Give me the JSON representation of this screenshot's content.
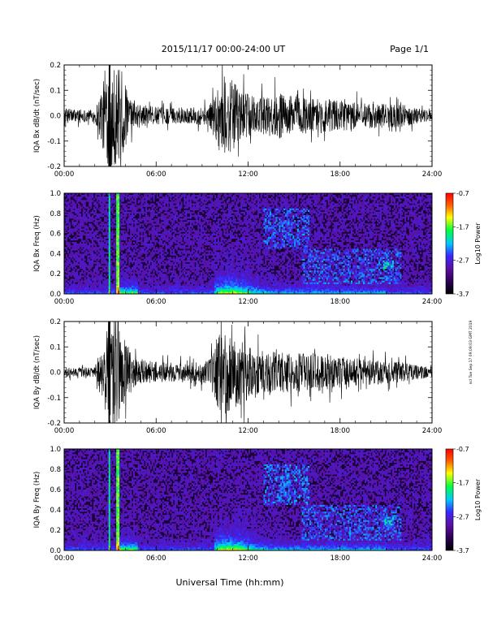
{
  "header": {
    "title": "2015/11/17   00:00-24:00 UT",
    "page": "Page 1/1"
  },
  "footer": {
    "xlabel": "Universal Time (hh:mm)",
    "stamp": "ncl Tue Sep 17 09:09:03 GMT 2019"
  },
  "colors": {
    "trace": "#000000",
    "colormap": [
      "#000000",
      "#2a0050",
      "#5a10a0",
      "#3a28ff",
      "#00c8ff",
      "#00ff40",
      "#ffff00",
      "#ff6000",
      "#ff0000"
    ]
  },
  "chart_data": [
    {
      "type": "line",
      "id": "bx-waveform",
      "ylabel": "IQA Bx dB/dt (nT/sec)",
      "xlim": [
        0,
        24
      ],
      "ylim": [
        -0.2,
        0.2
      ],
      "xticks": [
        "00:00",
        "06:00",
        "12:00",
        "18:00",
        "24:00"
      ],
      "yticks": [
        "-0.2",
        "-0.1",
        "0.0",
        "0.1",
        "0.2"
      ],
      "series": [
        {
          "x_hours": [
            0,
            1,
            2,
            2.9,
            3.1,
            3.5,
            4.5,
            6,
            8,
            9.5,
            10.3,
            10.8,
            11.5,
            12.5,
            14,
            15,
            16,
            17,
            18,
            20,
            22,
            24
          ],
          "amplitude": [
            0.03,
            0.025,
            0.025,
            0.2,
            0.2,
            0.2,
            0.05,
            0.035,
            0.03,
            0.04,
            0.17,
            0.15,
            0.1,
            0.07,
            0.09,
            0.08,
            0.07,
            0.07,
            0.06,
            0.05,
            0.045,
            0.02
          ]
        }
      ]
    },
    {
      "type": "heatmap",
      "id": "bx-spectrogram",
      "ylabel": "IQA Bx Freq (Hz)",
      "xlim": [
        0,
        24
      ],
      "ylim": [
        0,
        1.0
      ],
      "xticks": [
        "00:00",
        "06:00",
        "12:00",
        "18:00",
        "24:00"
      ],
      "yticks": [
        "0.0",
        "0.2",
        "0.4",
        "0.6",
        "0.8",
        "1.0"
      ],
      "colorbar": {
        "label": "Log10 Power",
        "range": [
          -3.7,
          -0.7
        ],
        "ticks": [
          "-0.7",
          "-1.7",
          "-2.7",
          "-3.7"
        ]
      }
    },
    {
      "type": "line",
      "id": "by-waveform",
      "ylabel": "IQA By dB/dt (nT/sec)",
      "xlim": [
        0,
        24
      ],
      "ylim": [
        -0.2,
        0.2
      ],
      "xticks": [
        "00:00",
        "06:00",
        "12:00",
        "18:00",
        "24:00"
      ],
      "yticks": [
        "-0.2",
        "-0.1",
        "0.0",
        "0.1",
        "0.2"
      ],
      "series": [
        {
          "x_hours": [
            0,
            1,
            2,
            2.9,
            3.1,
            3.5,
            4.5,
            6,
            8,
            9.5,
            10.3,
            10.8,
            11.5,
            12.5,
            14,
            15,
            16,
            17,
            18,
            20,
            22,
            24
          ],
          "amplitude": [
            0.02,
            0.02,
            0.02,
            0.2,
            0.2,
            0.2,
            0.06,
            0.04,
            0.035,
            0.05,
            0.18,
            0.15,
            0.13,
            0.09,
            0.08,
            0.08,
            0.07,
            0.08,
            0.06,
            0.05,
            0.04,
            0.02
          ]
        }
      ]
    },
    {
      "type": "heatmap",
      "id": "by-spectrogram",
      "ylabel": "IQA By Freq (Hz)",
      "xlim": [
        0,
        24
      ],
      "ylim": [
        0,
        1.0
      ],
      "xticks": [
        "00:00",
        "06:00",
        "12:00",
        "18:00",
        "24:00"
      ],
      "yticks": [
        "0.0",
        "0.2",
        "0.4",
        "0.6",
        "0.8",
        "1.0"
      ],
      "colorbar": {
        "label": "Log10 Power",
        "range": [
          -3.7,
          -0.7
        ],
        "ticks": [
          "-0.7",
          "-1.7",
          "-2.7",
          "-3.7"
        ]
      }
    }
  ]
}
